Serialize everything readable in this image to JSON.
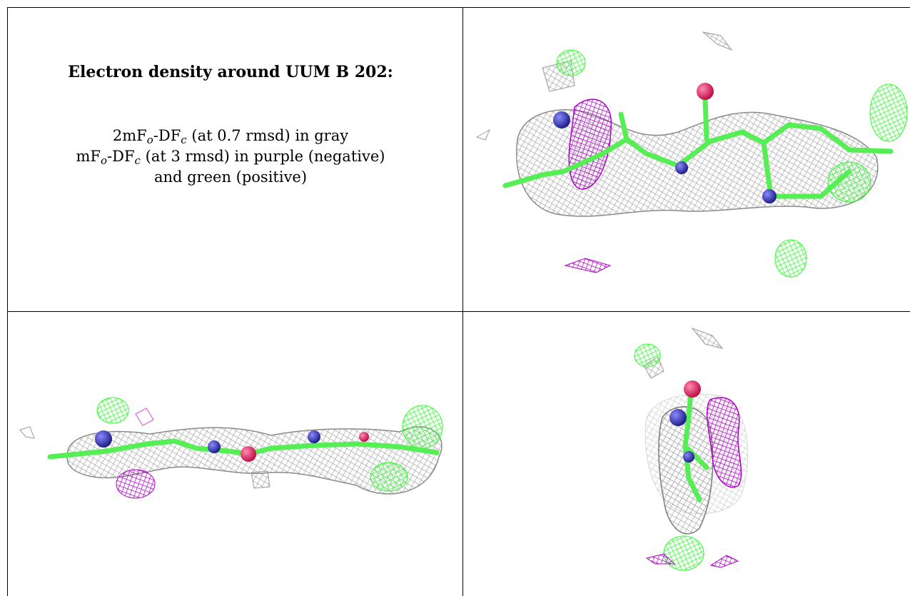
{
  "caption": {
    "title": "Electron density around UUM B 202:",
    "line1": {
      "prefix": "2mF",
      "sub1": "o",
      "mid": "-DF",
      "sub2": "c",
      "suffix": " (at 0.7 rmsd) in gray"
    },
    "line2": {
      "prefix": "mF",
      "sub1": "o",
      "mid": "-DF",
      "sub2": "c",
      "suffix": " (at 3 rmsd) in purple (negative)"
    },
    "line3": "and green (positive)"
  },
  "colors": {
    "mesh_gray": "#9a9a9a",
    "mesh_negative": "#b000c8",
    "mesh_positive": "#2cff2c",
    "carbon": "#55ee55",
    "nitrogen": "#3a3ab8",
    "oxygen": "#ee2a6e"
  },
  "views": [
    {
      "name": "view-top-right"
    },
    {
      "name": "view-bottom-left"
    },
    {
      "name": "view-bottom-right"
    }
  ]
}
